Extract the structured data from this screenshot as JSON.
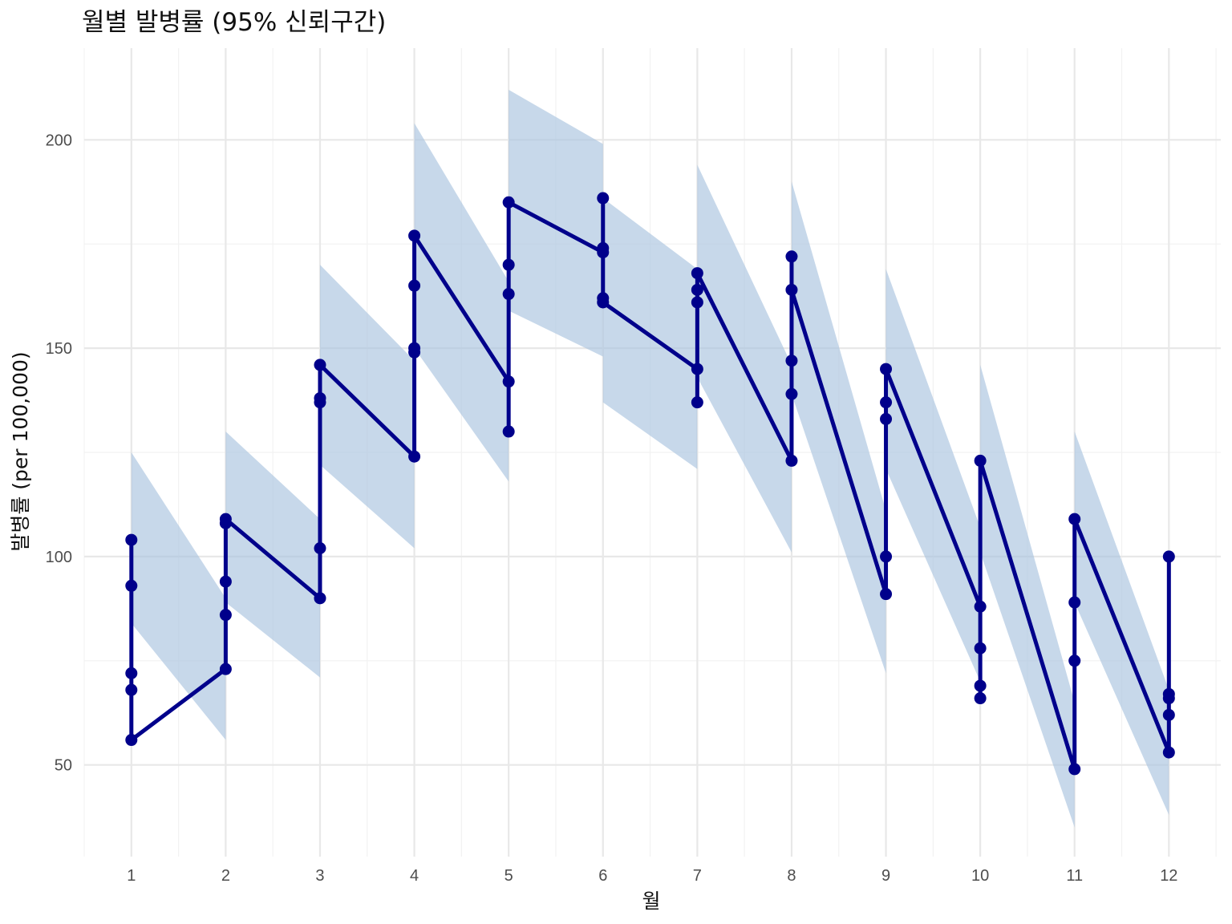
{
  "chart_data": {
    "type": "line",
    "title": "월별 발병률 (95% 신뢰구간)",
    "xlabel": "월",
    "ylabel": "발병률 (per 100,000)",
    "x_ticks": [
      "1",
      "2",
      "3",
      "4",
      "5",
      "6",
      "7",
      "8",
      "9",
      "10",
      "11",
      "12"
    ],
    "y_ticks": [
      "50",
      "100",
      "150",
      "200"
    ],
    "xlim": [
      0.5,
      12.55
    ],
    "ylim": [
      28,
      222
    ],
    "grid": true,
    "colors": {
      "line": "#00008b",
      "ribbon": "#a9c3de"
    },
    "series": [
      {
        "points": [
          {
            "x": 1,
            "y": 104,
            "lower": 84,
            "upper": 125
          },
          {
            "x": 1,
            "y": 93
          },
          {
            "x": 1,
            "y": 72
          },
          {
            "x": 1,
            "y": 68
          },
          {
            "x": 1,
            "y": 56
          },
          {
            "x": 2,
            "y": 73,
            "lower": 56,
            "upper": 90
          },
          {
            "x": 2,
            "y": 86
          },
          {
            "x": 2,
            "y": 94
          },
          {
            "x": 2,
            "y": 108
          },
          {
            "x": 2,
            "y": 109,
            "lower": 89,
            "upper": 130
          },
          {
            "x": 3,
            "y": 90,
            "lower": 71,
            "upper": 109
          },
          {
            "x": 3,
            "y": 102
          },
          {
            "x": 3,
            "y": 137
          },
          {
            "x": 3,
            "y": 138
          },
          {
            "x": 3,
            "y": 146,
            "lower": 122,
            "upper": 170
          },
          {
            "x": 4,
            "y": 124,
            "lower": 102,
            "upper": 147
          },
          {
            "x": 4,
            "y": 149
          },
          {
            "x": 4,
            "y": 150
          },
          {
            "x": 4,
            "y": 165
          },
          {
            "x": 4,
            "y": 177,
            "lower": 150,
            "upper": 204
          },
          {
            "x": 5,
            "y": 142,
            "lower": 118,
            "upper": 166
          },
          {
            "x": 5,
            "y": 130
          },
          {
            "x": 5,
            "y": 163
          },
          {
            "x": 5,
            "y": 170
          },
          {
            "x": 5,
            "y": 185,
            "lower": 159,
            "upper": 212
          },
          {
            "x": 6,
            "y": 173,
            "lower": 148,
            "upper": 199
          },
          {
            "x": 6,
            "y": 174
          },
          {
            "x": 6,
            "y": 186
          },
          {
            "x": 6,
            "y": 162
          },
          {
            "x": 6,
            "y": 161,
            "lower": 137,
            "upper": 186
          },
          {
            "x": 7,
            "y": 145,
            "lower": 121,
            "upper": 169
          },
          {
            "x": 7,
            "y": 137
          },
          {
            "x": 7,
            "y": 161
          },
          {
            "x": 7,
            "y": 164
          },
          {
            "x": 7,
            "y": 168,
            "lower": 143,
            "upper": 194
          },
          {
            "x": 8,
            "y": 123,
            "lower": 101,
            "upper": 146
          },
          {
            "x": 8,
            "y": 139
          },
          {
            "x": 8,
            "y": 147
          },
          {
            "x": 8,
            "y": 172
          },
          {
            "x": 8,
            "y": 164,
            "lower": 139,
            "upper": 190
          },
          {
            "x": 9,
            "y": 91,
            "lower": 72,
            "upper": 111
          },
          {
            "x": 9,
            "y": 100
          },
          {
            "x": 9,
            "y": 133
          },
          {
            "x": 9,
            "y": 137
          },
          {
            "x": 9,
            "y": 145,
            "lower": 121,
            "upper": 169
          },
          {
            "x": 10,
            "y": 88,
            "lower": 70,
            "upper": 107
          },
          {
            "x": 10,
            "y": 66
          },
          {
            "x": 10,
            "y": 69
          },
          {
            "x": 10,
            "y": 78
          },
          {
            "x": 10,
            "y": 123,
            "lower": 101,
            "upper": 146
          },
          {
            "x": 11,
            "y": 49,
            "lower": 35,
            "upper": 65
          },
          {
            "x": 11,
            "y": 75
          },
          {
            "x": 11,
            "y": 89
          },
          {
            "x": 11,
            "y": 109,
            "lower": 89,
            "upper": 130
          },
          {
            "x": 12,
            "y": 53,
            "lower": 38,
            "upper": 68
          },
          {
            "x": 12,
            "y": 62
          },
          {
            "x": 12,
            "y": 67
          },
          {
            "x": 12,
            "y": 66
          },
          {
            "x": 12,
            "y": 100
          }
        ]
      }
    ]
  }
}
